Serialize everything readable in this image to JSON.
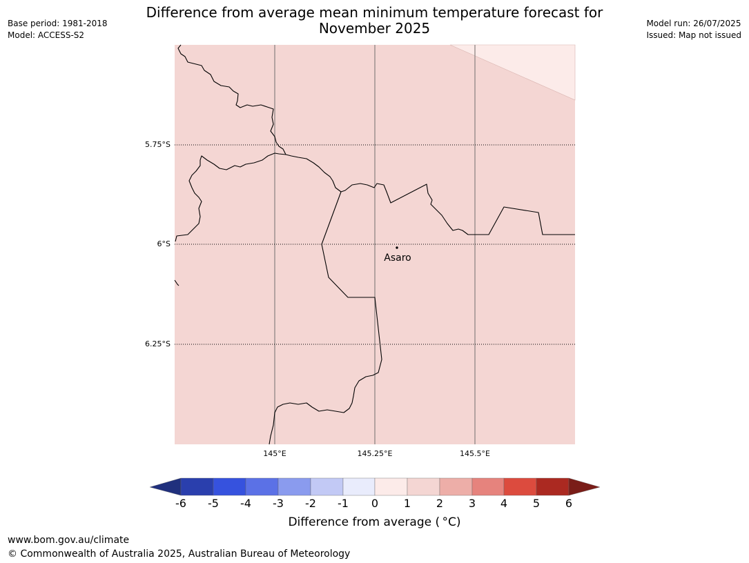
{
  "title_line1": "Difference from average mean minimum temperature forecast for",
  "title_line2": "November 2025",
  "base_period": "Base period: 1981-2018",
  "model": "Model: ACCESS-S2",
  "model_run": "Model run: 26/07/2025",
  "issued": "Issued: Map not issued",
  "map": {
    "background_color": "#f4d6d3",
    "corner_color": "#fcebe9",
    "latitude_labels": [
      "5.75°S",
      "6°S",
      "6.25°S"
    ],
    "longitude_labels": [
      "145°E",
      "145.25°E",
      "145.5°E"
    ],
    "place_label": "Asaro"
  },
  "colorbar": {
    "title": "Difference from average ( °C)",
    "tick_labels": [
      "-6",
      "-5",
      "-4",
      "-3",
      "-2",
      "-1",
      "0",
      "1",
      "2",
      "3",
      "4",
      "5",
      "6"
    ],
    "colors": [
      "#20307d",
      "#2a3fad",
      "#3652de",
      "#5b71e6",
      "#8a9bee",
      "#c2c9f5",
      "#e9ecfc",
      "#fcebe9",
      "#f4d6d3",
      "#edaea8",
      "#e6837d",
      "#dc4b3e",
      "#ab2921",
      "#7a1d18"
    ]
  },
  "footer_url": "www.bom.gov.au/climate",
  "footer_copy": "© Commonwealth of Australia 2025, Australian Bureau of Meteorology"
}
